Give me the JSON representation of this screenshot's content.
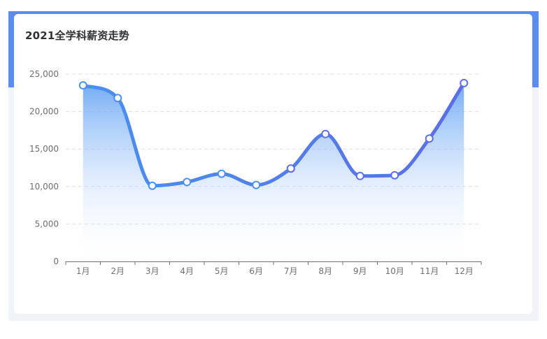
{
  "card": {
    "title": "2021全学科薪资走势"
  },
  "colors": {
    "line_start": "#4a90f0",
    "line_end": "#5b6ee6",
    "area_top": "#5a9cf2",
    "point_fill": "#ffffff",
    "band": "#5b8cf0"
  },
  "chart_data": {
    "type": "line",
    "smooth": true,
    "area_fill": true,
    "categories": [
      "1月",
      "2月",
      "3月",
      "4月",
      "5月",
      "6月",
      "7月",
      "8月",
      "9月",
      "10月",
      "11月",
      "12月"
    ],
    "values": [
      23500,
      21800,
      10100,
      10600,
      11700,
      10200,
      12400,
      17000,
      11400,
      11500,
      16400,
      23800
    ],
    "ylim": [
      0,
      25000
    ],
    "yticks": [
      0,
      5000,
      10000,
      15000,
      20000,
      25000
    ],
    "ytick_labels": [
      "0",
      "5,000",
      "10,000",
      "15,000",
      "20,000",
      "25,000"
    ],
    "grid": true,
    "title": "2021全学科薪资走势",
    "xlabel": "",
    "ylabel": ""
  }
}
